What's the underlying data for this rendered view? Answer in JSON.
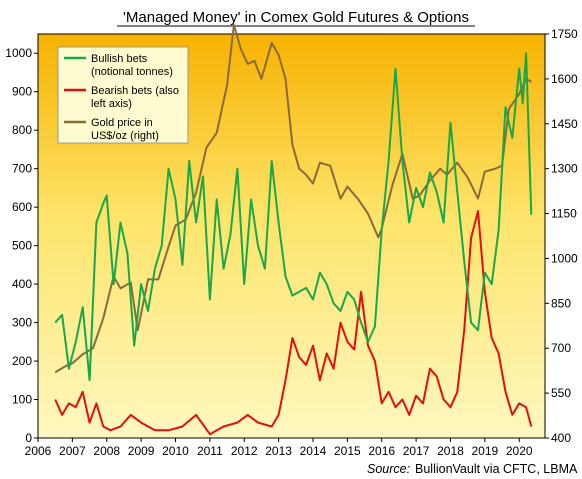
{
  "chart_data": {
    "type": "line",
    "title": "'Managed Money' in Comex Gold Futures & Options",
    "source_label": "Source:",
    "source_text": "BullionVault via CFTC, LBMA",
    "x_range": [
      2006,
      2020.75
    ],
    "x_ticks": [
      "2006",
      "2007",
      "2008",
      "2009",
      "2010",
      "2011",
      "2012",
      "2013",
      "2014",
      "2015",
      "2016",
      "2017",
      "2018",
      "2019",
      "2020"
    ],
    "y_left_range": [
      0,
      1050
    ],
    "y_left_ticks": [
      "0",
      "100",
      "200",
      "300",
      "400",
      "500",
      "600",
      "700",
      "800",
      "900",
      "1000"
    ],
    "y_right_range": [
      400,
      1750
    ],
    "y_right_ticks": [
      "400",
      "550",
      "700",
      "850",
      "1000",
      "1150",
      "1300",
      "1450",
      "1600",
      "1750"
    ],
    "legend": [
      {
        "label_line1": "Bullish bets",
        "label_line2": "(notional tonnes)",
        "color": "#18a84a"
      },
      {
        "label_line1": "Bearish bets (also",
        "label_line2": "left axis)",
        "color": "#e01010"
      },
      {
        "label_line1": "Gold price in",
        "label_line2": "US$/oz (right)",
        "color": "#8b6a3a"
      }
    ],
    "series": [
      {
        "name": "Bullish bets",
        "axis": "left",
        "color": "#18a84a",
        "x": [
          2006.5,
          2006.7,
          2006.9,
          2007.1,
          2007.3,
          2007.5,
          2007.7,
          2007.9,
          2008.0,
          2008.2,
          2008.4,
          2008.6,
          2008.8,
          2009.0,
          2009.2,
          2009.4,
          2009.6,
          2009.8,
          2010.0,
          2010.2,
          2010.4,
          2010.6,
          2010.8,
          2011.0,
          2011.2,
          2011.4,
          2011.6,
          2011.8,
          2012.0,
          2012.2,
          2012.4,
          2012.6,
          2012.8,
          2013.0,
          2013.2,
          2013.4,
          2013.6,
          2013.8,
          2014.0,
          2014.2,
          2014.4,
          2014.6,
          2014.8,
          2015.0,
          2015.2,
          2015.4,
          2015.6,
          2015.8,
          2016.0,
          2016.2,
          2016.4,
          2016.6,
          2016.8,
          2017.0,
          2017.2,
          2017.4,
          2017.6,
          2017.8,
          2018.0,
          2018.2,
          2018.4,
          2018.6,
          2018.8,
          2019.0,
          2019.2,
          2019.4,
          2019.6,
          2019.8,
          2020.0,
          2020.1,
          2020.2,
          2020.35
        ],
        "values": [
          300,
          320,
          180,
          250,
          340,
          150,
          560,
          610,
          630,
          400,
          560,
          480,
          240,
          400,
          330,
          440,
          500,
          700,
          620,
          450,
          720,
          560,
          680,
          360,
          620,
          440,
          530,
          700,
          400,
          620,
          500,
          440,
          720,
          560,
          420,
          370,
          380,
          390,
          360,
          430,
          400,
          350,
          330,
          380,
          360,
          300,
          250,
          290,
          540,
          720,
          960,
          720,
          560,
          650,
          600,
          690,
          640,
          560,
          820,
          640,
          460,
          300,
          280,
          430,
          400,
          540,
          860,
          780,
          960,
          870,
          1000,
          580
        ]
      },
      {
        "name": "Bearish bets",
        "axis": "left",
        "color": "#e01010",
        "x": [
          2006.5,
          2006.7,
          2006.9,
          2007.1,
          2007.3,
          2007.5,
          2007.7,
          2007.9,
          2008.1,
          2008.4,
          2008.7,
          2009.0,
          2009.4,
          2009.8,
          2010.2,
          2010.6,
          2011.0,
          2011.4,
          2011.8,
          2012.1,
          2012.4,
          2012.8,
          2013.0,
          2013.2,
          2013.4,
          2013.6,
          2013.8,
          2014.0,
          2014.2,
          2014.4,
          2014.6,
          2014.8,
          2015.0,
          2015.2,
          2015.4,
          2015.6,
          2015.8,
          2016.0,
          2016.2,
          2016.4,
          2016.6,
          2016.8,
          2017.0,
          2017.2,
          2017.4,
          2017.6,
          2017.8,
          2018.0,
          2018.2,
          2018.4,
          2018.6,
          2018.8,
          2019.0,
          2019.2,
          2019.4,
          2019.6,
          2019.8,
          2020.0,
          2020.2,
          2020.35
        ],
        "values": [
          100,
          60,
          90,
          80,
          120,
          40,
          90,
          30,
          20,
          30,
          60,
          40,
          20,
          20,
          30,
          60,
          10,
          30,
          40,
          60,
          40,
          30,
          60,
          150,
          260,
          210,
          190,
          240,
          150,
          220,
          180,
          300,
          250,
          230,
          380,
          240,
          200,
          90,
          120,
          80,
          100,
          60,
          110,
          90,
          180,
          160,
          100,
          80,
          120,
          280,
          520,
          590,
          380,
          260,
          220,
          120,
          60,
          90,
          80,
          30
        ]
      },
      {
        "name": "Gold price",
        "axis": "right",
        "color": "#8b6a3a",
        "x": [
          2006.5,
          2006.8,
          2007.0,
          2007.3,
          2007.6,
          2007.9,
          2008.2,
          2008.4,
          2008.7,
          2008.9,
          2009.2,
          2009.5,
          2009.8,
          2010.0,
          2010.3,
          2010.6,
          2010.9,
          2011.2,
          2011.5,
          2011.7,
          2011.9,
          2012.1,
          2012.3,
          2012.5,
          2012.8,
          2013.0,
          2013.2,
          2013.4,
          2013.6,
          2013.8,
          2014.0,
          2014.2,
          2014.5,
          2014.8,
          2015.0,
          2015.3,
          2015.6,
          2015.9,
          2016.0,
          2016.3,
          2016.6,
          2016.9,
          2017.1,
          2017.4,
          2017.7,
          2017.9,
          2018.2,
          2018.5,
          2018.8,
          2019.0,
          2019.3,
          2019.5,
          2019.7,
          2020.0,
          2020.2,
          2020.35
        ],
        "values": [
          620,
          640,
          650,
          680,
          700,
          800,
          940,
          900,
          920,
          760,
          930,
          930,
          1040,
          1110,
          1130,
          1220,
          1370,
          1420,
          1580,
          1780,
          1700,
          1650,
          1660,
          1600,
          1720,
          1680,
          1600,
          1380,
          1300,
          1280,
          1250,
          1320,
          1310,
          1200,
          1240,
          1200,
          1150,
          1070,
          1100,
          1240,
          1350,
          1200,
          1210,
          1260,
          1300,
          1280,
          1320,
          1270,
          1200,
          1290,
          1300,
          1310,
          1500,
          1550,
          1600,
          1590
        ]
      }
    ]
  }
}
